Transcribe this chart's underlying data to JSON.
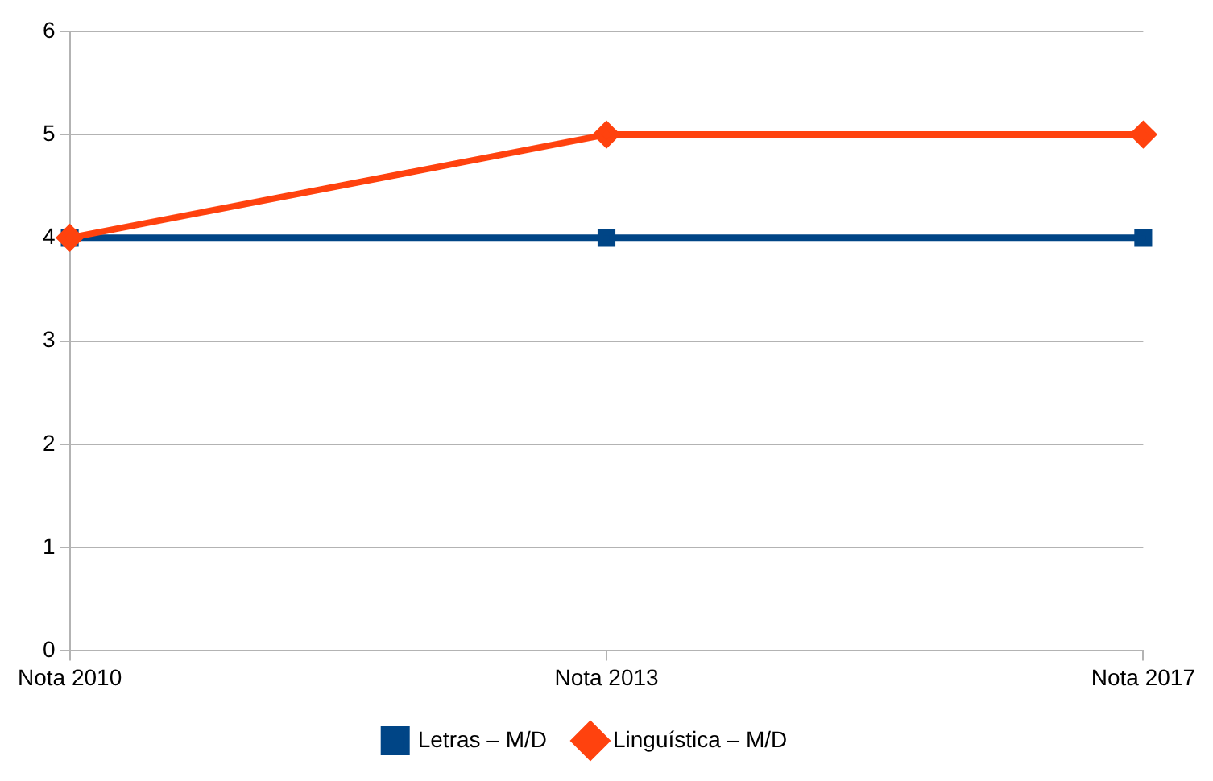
{
  "chart_data": {
    "type": "line",
    "categories": [
      "Nota 2010",
      "Nota 2013",
      "Nota 2017"
    ],
    "series": [
      {
        "name": "Letras – M/D",
        "color": "#004586",
        "values": [
          4,
          4,
          4
        ],
        "marker": "square"
      },
      {
        "name": "Linguística – M/D",
        "color": "#ff420e",
        "values": [
          4,
          5,
          5
        ],
        "marker": "diamond"
      }
    ],
    "ylim": [
      0,
      6
    ],
    "yticks": [
      0,
      1,
      2,
      3,
      4,
      5,
      6
    ],
    "grid": "y",
    "legend": "bottom",
    "line_style": "solid"
  }
}
